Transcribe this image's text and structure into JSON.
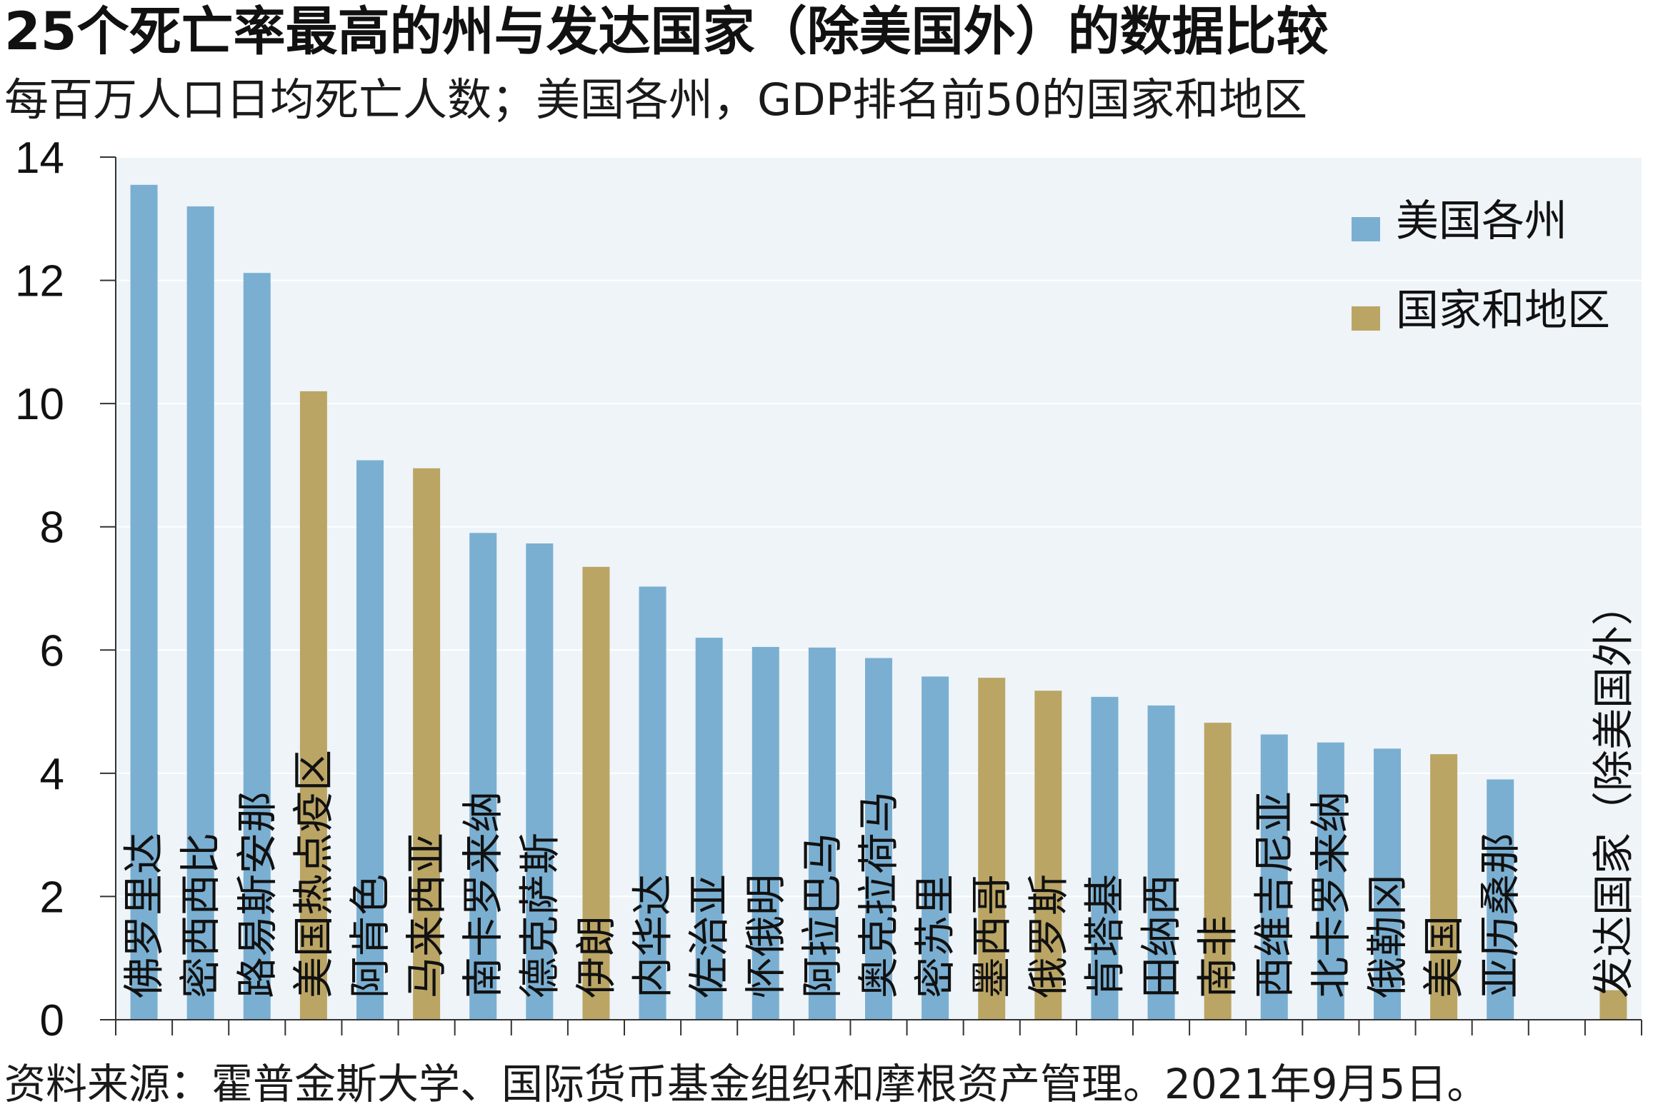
{
  "title": "25个死亡率最高的州与发达国家（除美国外）的数据比较",
  "subtitle": "每百万人口日均死亡人数；美国各州，GDP排名前50的国家和地区",
  "source": "资料来源：霍普金斯大学、国际货币基金组织和摩根资产管理。2021年9月5日。",
  "colors": {
    "states": "#7aafd2",
    "countries": "#bba564",
    "plot_background": "#eef4f8",
    "gridline": "#ffffff",
    "axis": "#333333"
  },
  "chart_data": {
    "type": "bar",
    "title": "25个死亡率最高的州与发达国家（除美国外）的数据比较",
    "subtitle": "每百万人口日均死亡人数；美国各州，GDP排名前50的国家和地区",
    "ylim": [
      0,
      14
    ],
    "yticks": [
      0,
      2,
      4,
      6,
      8,
      10,
      12,
      14
    ],
    "grid": true,
    "legend_position": "top-right",
    "legend": [
      {
        "name": "美国各州",
        "color": "#7aafd2"
      },
      {
        "name": "国家和地区",
        "color": "#bba564"
      }
    ],
    "bars": [
      {
        "label": "佛罗里达",
        "value": 13.55,
        "group": "state"
      },
      {
        "label": "密西西比",
        "value": 13.2,
        "group": "state"
      },
      {
        "label": "路易斯安那",
        "value": 12.12,
        "group": "state"
      },
      {
        "label": "美国热点疫区",
        "value": 10.2,
        "group": "country"
      },
      {
        "label": "阿肯色",
        "value": 9.08,
        "group": "state"
      },
      {
        "label": "马来西亚",
        "value": 8.95,
        "group": "country"
      },
      {
        "label": "南卡罗来纳",
        "value": 7.9,
        "group": "state"
      },
      {
        "label": "德克萨斯",
        "value": 7.73,
        "group": "state"
      },
      {
        "label": "伊朗",
        "value": 7.35,
        "group": "country"
      },
      {
        "label": "内华达",
        "value": 7.03,
        "group": "state"
      },
      {
        "label": "佐治亚",
        "value": 6.2,
        "group": "state"
      },
      {
        "label": "怀俄明",
        "value": 6.05,
        "group": "state"
      },
      {
        "label": "阿拉巴马",
        "value": 6.04,
        "group": "state"
      },
      {
        "label": "奥克拉荷马",
        "value": 5.87,
        "group": "state"
      },
      {
        "label": "密苏里",
        "value": 5.57,
        "group": "state"
      },
      {
        "label": "墨西哥",
        "value": 5.55,
        "group": "country"
      },
      {
        "label": "俄罗斯",
        "value": 5.34,
        "group": "country"
      },
      {
        "label": "肯塔基",
        "value": 5.24,
        "group": "state"
      },
      {
        "label": "田纳西",
        "value": 5.1,
        "group": "state"
      },
      {
        "label": "南非",
        "value": 4.82,
        "group": "country"
      },
      {
        "label": "西维吉尼亚",
        "value": 4.63,
        "group": "state"
      },
      {
        "label": "北卡罗来纳",
        "value": 4.5,
        "group": "state"
      },
      {
        "label": "俄勒冈",
        "value": 4.4,
        "group": "state"
      },
      {
        "label": "美国",
        "value": 4.31,
        "group": "country"
      },
      {
        "label": "亚历桑那",
        "value": 3.9,
        "group": "state"
      },
      {
        "label": "",
        "value": null,
        "group": "none"
      },
      {
        "label": "发达国家（除美国外）",
        "value": 0.48,
        "group": "country"
      }
    ]
  }
}
